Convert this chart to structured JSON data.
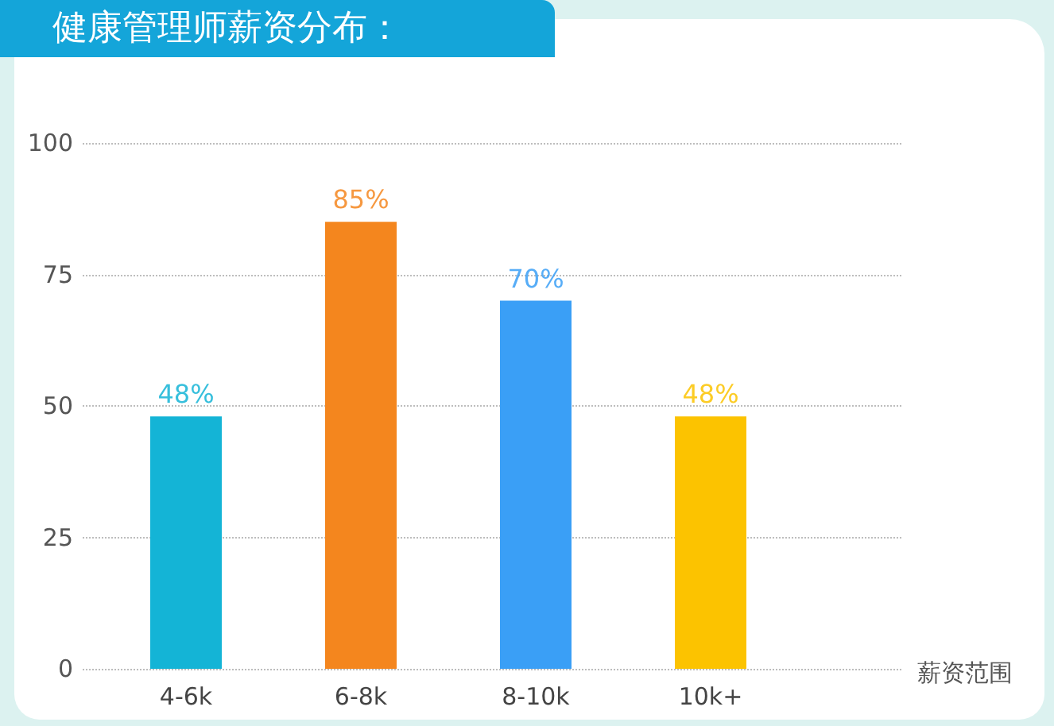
{
  "chart_data": {
    "type": "bar",
    "title": "健康管理师薪资分布：",
    "xlabel": "薪资范围",
    "categories": [
      "4-6k",
      "6-8k",
      "8-10k",
      "10k+"
    ],
    "values": [
      48,
      85,
      70,
      48
    ],
    "colors": [
      "#14b4d6",
      "#f4861e",
      "#3a9ff6",
      "#fcc300"
    ],
    "value_labels": [
      "48%",
      "85%",
      "70%",
      "48%"
    ],
    "ylim": [
      0,
      100
    ],
    "yticks": [
      0,
      25,
      50,
      75,
      100
    ],
    "grid": "y"
  }
}
